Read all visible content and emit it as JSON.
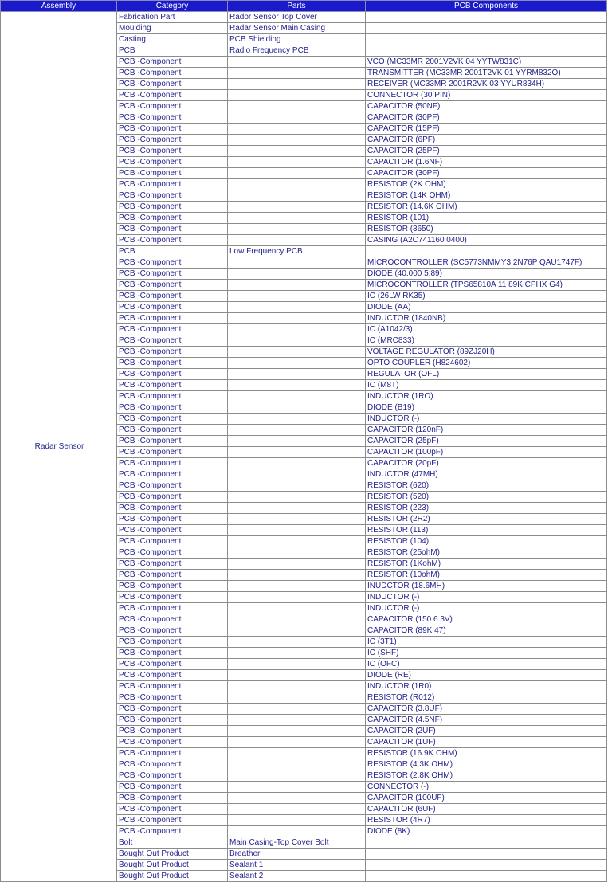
{
  "headers": [
    "Assembly",
    "Category",
    "Parts",
    "PCB Components"
  ],
  "assembly": "Radar Sensor",
  "rows": [
    [
      "Fabrication Part",
      "Rador Sensor Top Cover",
      ""
    ],
    [
      "Moulding",
      "Radar Sensor Main Casing",
      ""
    ],
    [
      "Casting",
      "PCB Shielding",
      ""
    ],
    [
      "PCB",
      "Radio Frequency PCB",
      ""
    ],
    [
      "PCB -Component",
      "",
      "VCO (MC33MR 2001V2VK 04 YYTW831C)"
    ],
    [
      "PCB -Component",
      "",
      "TRANSMITTER (MC33MR 2001T2VK  01 YYRM832Q)"
    ],
    [
      "PCB -Component",
      "",
      "RECEIVER (MC33MR 2001R2VK 03 YYUR834H)"
    ],
    [
      "PCB -Component",
      "",
      "CONNECTOR (30 PIN)"
    ],
    [
      "PCB -Component",
      "",
      "CAPACITOR (50NF)"
    ],
    [
      "PCB -Component",
      "",
      "CAPACITOR (30PF)"
    ],
    [
      "PCB -Component",
      "",
      "CAPACITOR (15PF)"
    ],
    [
      "PCB -Component",
      "",
      "CAPACITOR (6PF)"
    ],
    [
      "PCB -Component",
      "",
      "CAPACITOR (25PF)"
    ],
    [
      "PCB -Component",
      "",
      "CAPACITOR (1.6NF)"
    ],
    [
      "PCB -Component",
      "",
      "CAPACITOR (30PF)"
    ],
    [
      "PCB -Component",
      "",
      "RESISTOR (2K OHM)"
    ],
    [
      "PCB -Component",
      "",
      "RESISTOR (14K OHM)"
    ],
    [
      "PCB -Component",
      "",
      "RESISTOR (14.6K OHM)"
    ],
    [
      "PCB -Component",
      "",
      "RESISTOR (101)"
    ],
    [
      "PCB -Component",
      "",
      "RESISTOR (3650)"
    ],
    [
      "PCB -Component",
      "",
      "CASING (A2C741160 0400)"
    ],
    [
      "PCB",
      "Low Frequency PCB",
      ""
    ],
    [
      "PCB -Component",
      "",
      "MICROCONTROLLER (SC5773NMMY3 2N76P QAU1747F)"
    ],
    [
      "PCB -Component",
      "",
      "DIODE (40.000 5:89)"
    ],
    [
      "PCB -Component",
      "",
      "MICROCONTROLLER (TPS65810A 11 89K CPHX G4)"
    ],
    [
      "PCB -Component",
      "",
      "IC (26LW RK35)"
    ],
    [
      "PCB -Component",
      "",
      "DIODE (AA)"
    ],
    [
      "PCB -Component",
      "",
      "INDUCTOR (1840NB)"
    ],
    [
      "PCB -Component",
      "",
      "IC (A1042/3)"
    ],
    [
      "PCB -Component",
      "",
      "IC (MRC833)"
    ],
    [
      "PCB -Component",
      "",
      "VOLTAGE REGULATOR (89ZJ20H)"
    ],
    [
      "PCB -Component",
      "",
      "OPTO COUPLER (H824602)"
    ],
    [
      "PCB -Component",
      "",
      "REGULATOR  (OFL)"
    ],
    [
      "PCB -Component",
      "",
      "IC (M8T)"
    ],
    [
      "PCB -Component",
      "",
      "INDUCTOR (1RO)"
    ],
    [
      "PCB -Component",
      "",
      "DIODE (B19)"
    ],
    [
      "PCB -Component",
      "",
      "INDUCTOR (-)"
    ],
    [
      "PCB -Component",
      "",
      "CAPACITOR (120nF)"
    ],
    [
      "PCB -Component",
      "",
      "CAPACITOR (25pF)"
    ],
    [
      "PCB -Component",
      "",
      "CAPACITOR (100pF)"
    ],
    [
      "PCB -Component",
      "",
      "CAPACITOR (20pF)"
    ],
    [
      "PCB -Component",
      "",
      "INDUCTOR (47MH)"
    ],
    [
      "PCB -Component",
      "",
      "RESISTOR (620)"
    ],
    [
      "PCB -Component",
      "",
      "RESISTOR (520)"
    ],
    [
      "PCB -Component",
      "",
      "RESISTOR (223)"
    ],
    [
      "PCB -Component",
      "",
      "RESISTOR (2R2)"
    ],
    [
      "PCB -Component",
      "",
      "RESISTOR (113)"
    ],
    [
      "PCB -Component",
      "",
      "RESISTOR (104)"
    ],
    [
      "PCB -Component",
      "",
      "RESISTOR (25ohM)"
    ],
    [
      "PCB -Component",
      "",
      "RESISTOR (1KohM)"
    ],
    [
      "PCB -Component",
      "",
      "RESISTOR (10ohM)"
    ],
    [
      "PCB -Component",
      "",
      "INUDCTOR (18.6MH)"
    ],
    [
      "PCB -Component",
      "",
      "INDUCTOR (-)"
    ],
    [
      "PCB -Component",
      "",
      "INDUCTOR (-)"
    ],
    [
      "PCB -Component",
      "",
      "CAPACITOR (150 6.3V)"
    ],
    [
      "PCB -Component",
      "",
      "CAPACITOR (89K 47)"
    ],
    [
      "PCB -Component",
      "",
      "IC (3T1)"
    ],
    [
      "PCB -Component",
      "",
      "IC (SHF)"
    ],
    [
      "PCB -Component",
      "",
      "IC (OFC)"
    ],
    [
      "PCB -Component",
      "",
      "DIODE  (RE)"
    ],
    [
      "PCB -Component",
      "",
      "INDUCTOR (1R0)"
    ],
    [
      "PCB -Component",
      "",
      "RESISTOR (R012)"
    ],
    [
      "PCB -Component",
      "",
      "CAPACITOR (3.8UF)"
    ],
    [
      "PCB -Component",
      "",
      "CAPACITOR (4.5NF)"
    ],
    [
      "PCB -Component",
      "",
      "CAPACITOR (2UF)"
    ],
    [
      "PCB -Component",
      "",
      "CAPACITOR (1UF)"
    ],
    [
      "PCB -Component",
      "",
      "RESISTOR (16.9K OHM)"
    ],
    [
      "PCB -Component",
      "",
      "RESISTOR (4.3K OHM)"
    ],
    [
      "PCB -Component",
      "",
      "RESISTOR (2.8K OHM)"
    ],
    [
      "PCB -Component",
      "",
      "CONNECTOR (-)"
    ],
    [
      "PCB -Component",
      "",
      "CAPACITOR (100UF)"
    ],
    [
      "PCB -Component",
      "",
      "CAPACITOR (6UF)"
    ],
    [
      "PCB -Component",
      "",
      "RESISTOR (4R7)"
    ],
    [
      "PCB -Component",
      "",
      "DIODE (8K)"
    ],
    [
      "Bolt",
      "Main Casing-Top Cover Bolt",
      ""
    ],
    [
      "Bought Out Product",
      "Breather",
      ""
    ],
    [
      "Bought Out Product",
      "Sealant 1",
      ""
    ],
    [
      "Bought Out Product",
      "Sealant 2",
      ""
    ]
  ]
}
